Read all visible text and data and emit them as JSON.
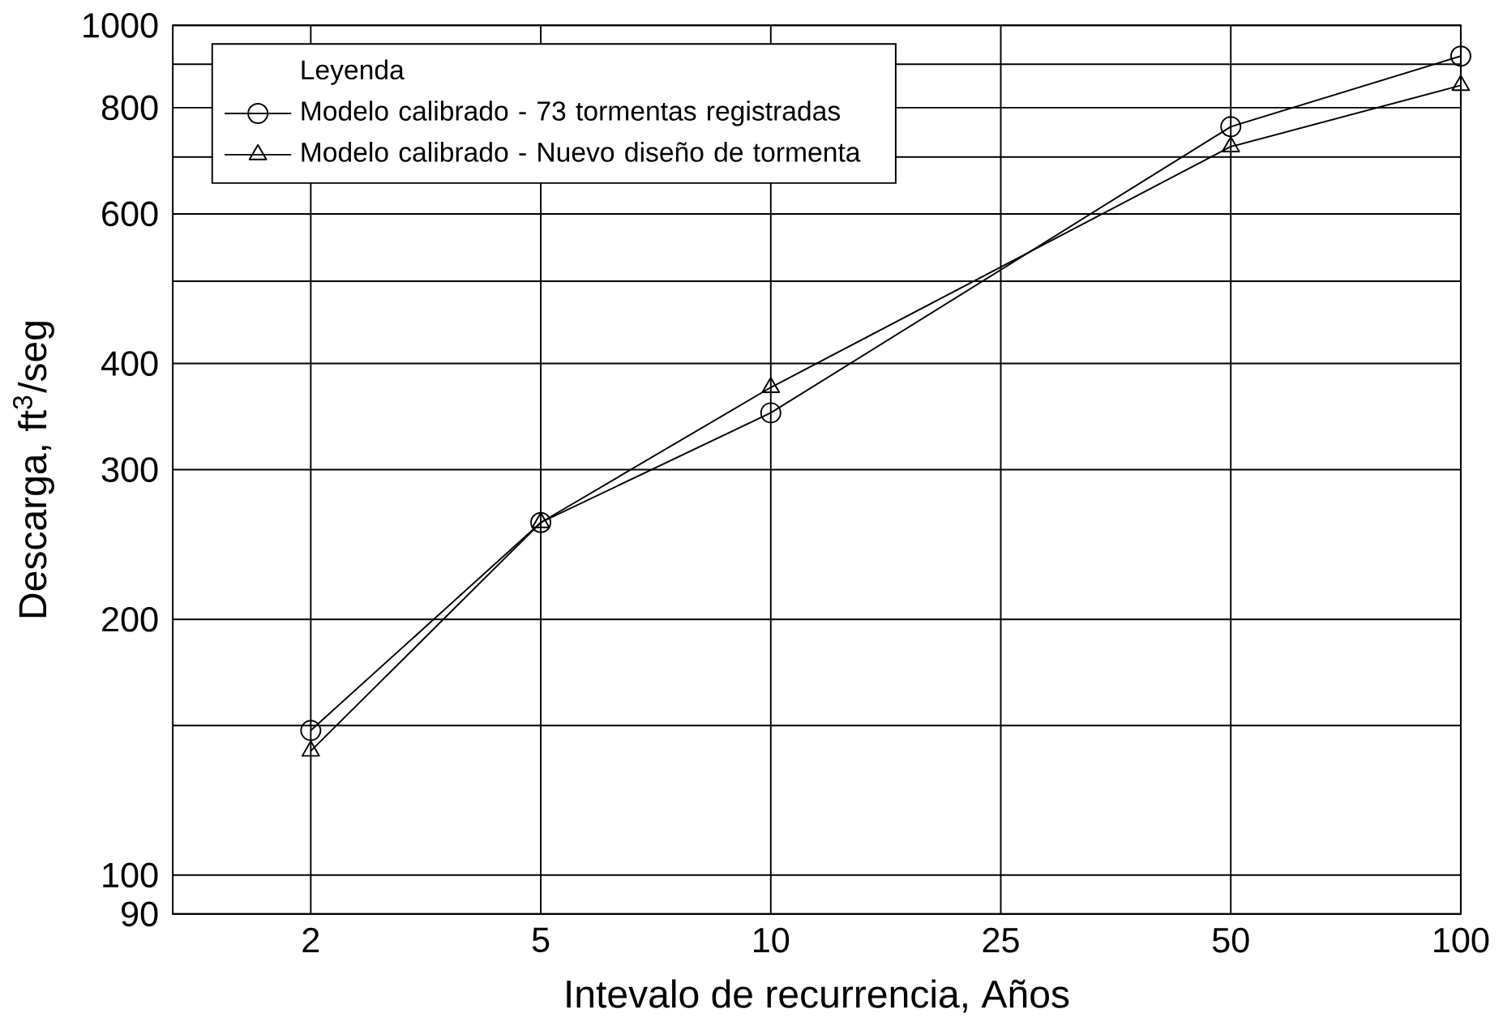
{
  "chart_data": {
    "type": "line",
    "xlabel": "Intevalo de recurrencia, Años",
    "ylabel": "Descarga, ft$^{3}$/seg",
    "legend_title": "Leyenda",
    "categories": [
      "2",
      "5",
      "10",
      "25",
      "50",
      "100"
    ],
    "series": [
      {
        "name": "Modelo calibrado - 73 tormentas registradas",
        "color": "#000000",
        "marker": "circle",
        "x": [
          "2",
          "5",
          "10",
          "50",
          "100"
        ],
        "values": [
          148,
          260,
          350,
          760,
          920
        ]
      },
      {
        "name": "Modelo calibrado - Nuevo diseño de tormenta",
        "color": "#000000",
        "marker": "triangle",
        "x": [
          "2",
          "5",
          "10",
          "50",
          "100"
        ],
        "values": [
          140,
          260,
          375,
          720,
          850
        ]
      }
    ],
    "log": "y",
    "ylim": [
      90,
      1000
    ],
    "yticks": [
      90,
      100,
      {
        "value": 150,
        "label": null
      },
      200,
      300,
      400,
      {
        "value": 500,
        "label": null
      },
      600,
      {
        "value": 700,
        "label": null
      },
      800,
      {
        "value": 900,
        "label": null
      },
      1000
    ],
    "grid": true,
    "legend": "top left"
  }
}
